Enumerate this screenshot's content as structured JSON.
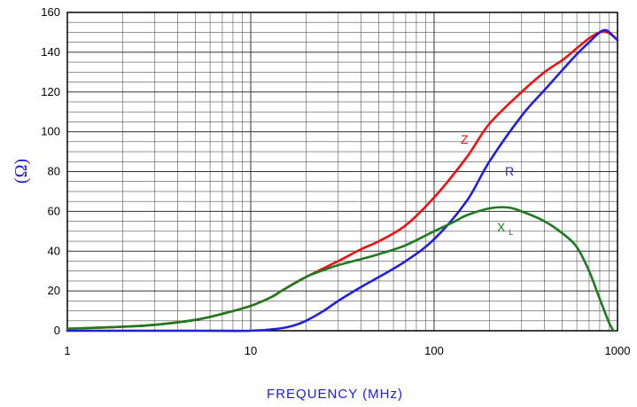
{
  "chart_data": {
    "type": "line",
    "title": "",
    "xlabel": "FREQUENCY (MHz)",
    "ylabel": "(Ω)",
    "x_scale": "log",
    "xlim": [
      1,
      1000
    ],
    "ylim": [
      0,
      160
    ],
    "x_ticks": [
      "1",
      "10",
      "100",
      "1000"
    ],
    "y_ticks": [
      "0",
      "20",
      "40",
      "60",
      "80",
      "100",
      "120",
      "140",
      "160"
    ],
    "grid": true,
    "colors": {
      "axis": "#000000",
      "grid": "#555555",
      "ylabel": "#1c1cdc",
      "xlabel": "#1c1cdc"
    },
    "series": [
      {
        "name": "Z",
        "label_main": "Z",
        "label_sub": "",
        "color": "#ee1111",
        "points": [
          [
            1,
            1
          ],
          [
            2,
            2
          ],
          [
            3,
            3
          ],
          [
            5,
            5.5
          ],
          [
            7,
            8.5
          ],
          [
            10,
            12.5
          ],
          [
            13,
            17
          ],
          [
            15,
            20.5
          ],
          [
            20,
            27
          ],
          [
            30,
            35
          ],
          [
            40,
            41
          ],
          [
            50,
            45
          ],
          [
            70,
            53
          ],
          [
            100,
            67
          ],
          [
            150,
            87
          ],
          [
            200,
            104
          ],
          [
            300,
            120
          ],
          [
            400,
            130
          ],
          [
            500,
            136
          ],
          [
            600,
            142
          ],
          [
            700,
            147
          ],
          [
            800,
            150
          ],
          [
            880,
            150
          ],
          [
            950,
            148
          ],
          [
            1000,
            146
          ]
        ]
      },
      {
        "name": "R",
        "label_main": "R",
        "label_sub": "",
        "color": "#1f1fdd",
        "points": [
          [
            1,
            0
          ],
          [
            5,
            0
          ],
          [
            10,
            0
          ],
          [
            14,
            1
          ],
          [
            17,
            2.5
          ],
          [
            20,
            5
          ],
          [
            25,
            10
          ],
          [
            30,
            15
          ],
          [
            40,
            22
          ],
          [
            50,
            27
          ],
          [
            70,
            35
          ],
          [
            100,
            46
          ],
          [
            150,
            65
          ],
          [
            200,
            85
          ],
          [
            300,
            108
          ],
          [
            400,
            121
          ],
          [
            500,
            131
          ],
          [
            600,
            139
          ],
          [
            700,
            145
          ],
          [
            800,
            150
          ],
          [
            870,
            151
          ],
          [
            950,
            148
          ],
          [
            1000,
            146
          ]
        ]
      },
      {
        "name": "XL",
        "label_main": "X",
        "label_sub": "L",
        "color": "#1e7a1e",
        "points": [
          [
            1,
            1
          ],
          [
            2,
            2
          ],
          [
            3,
            3
          ],
          [
            5,
            5.5
          ],
          [
            7,
            8.5
          ],
          [
            10,
            12.5
          ],
          [
            13,
            17
          ],
          [
            15,
            20.5
          ],
          [
            20,
            27
          ],
          [
            25,
            30.5
          ],
          [
            30,
            33
          ],
          [
            40,
            36
          ],
          [
            50,
            38.5
          ],
          [
            70,
            43
          ],
          [
            100,
            50
          ],
          [
            130,
            55
          ],
          [
            150,
            58
          ],
          [
            200,
            61.5
          ],
          [
            250,
            62
          ],
          [
            300,
            60
          ],
          [
            400,
            55
          ],
          [
            500,
            49
          ],
          [
            600,
            42
          ],
          [
            700,
            30
          ],
          [
            800,
            16
          ],
          [
            900,
            4
          ],
          [
            950,
            0
          ]
        ]
      }
    ]
  }
}
